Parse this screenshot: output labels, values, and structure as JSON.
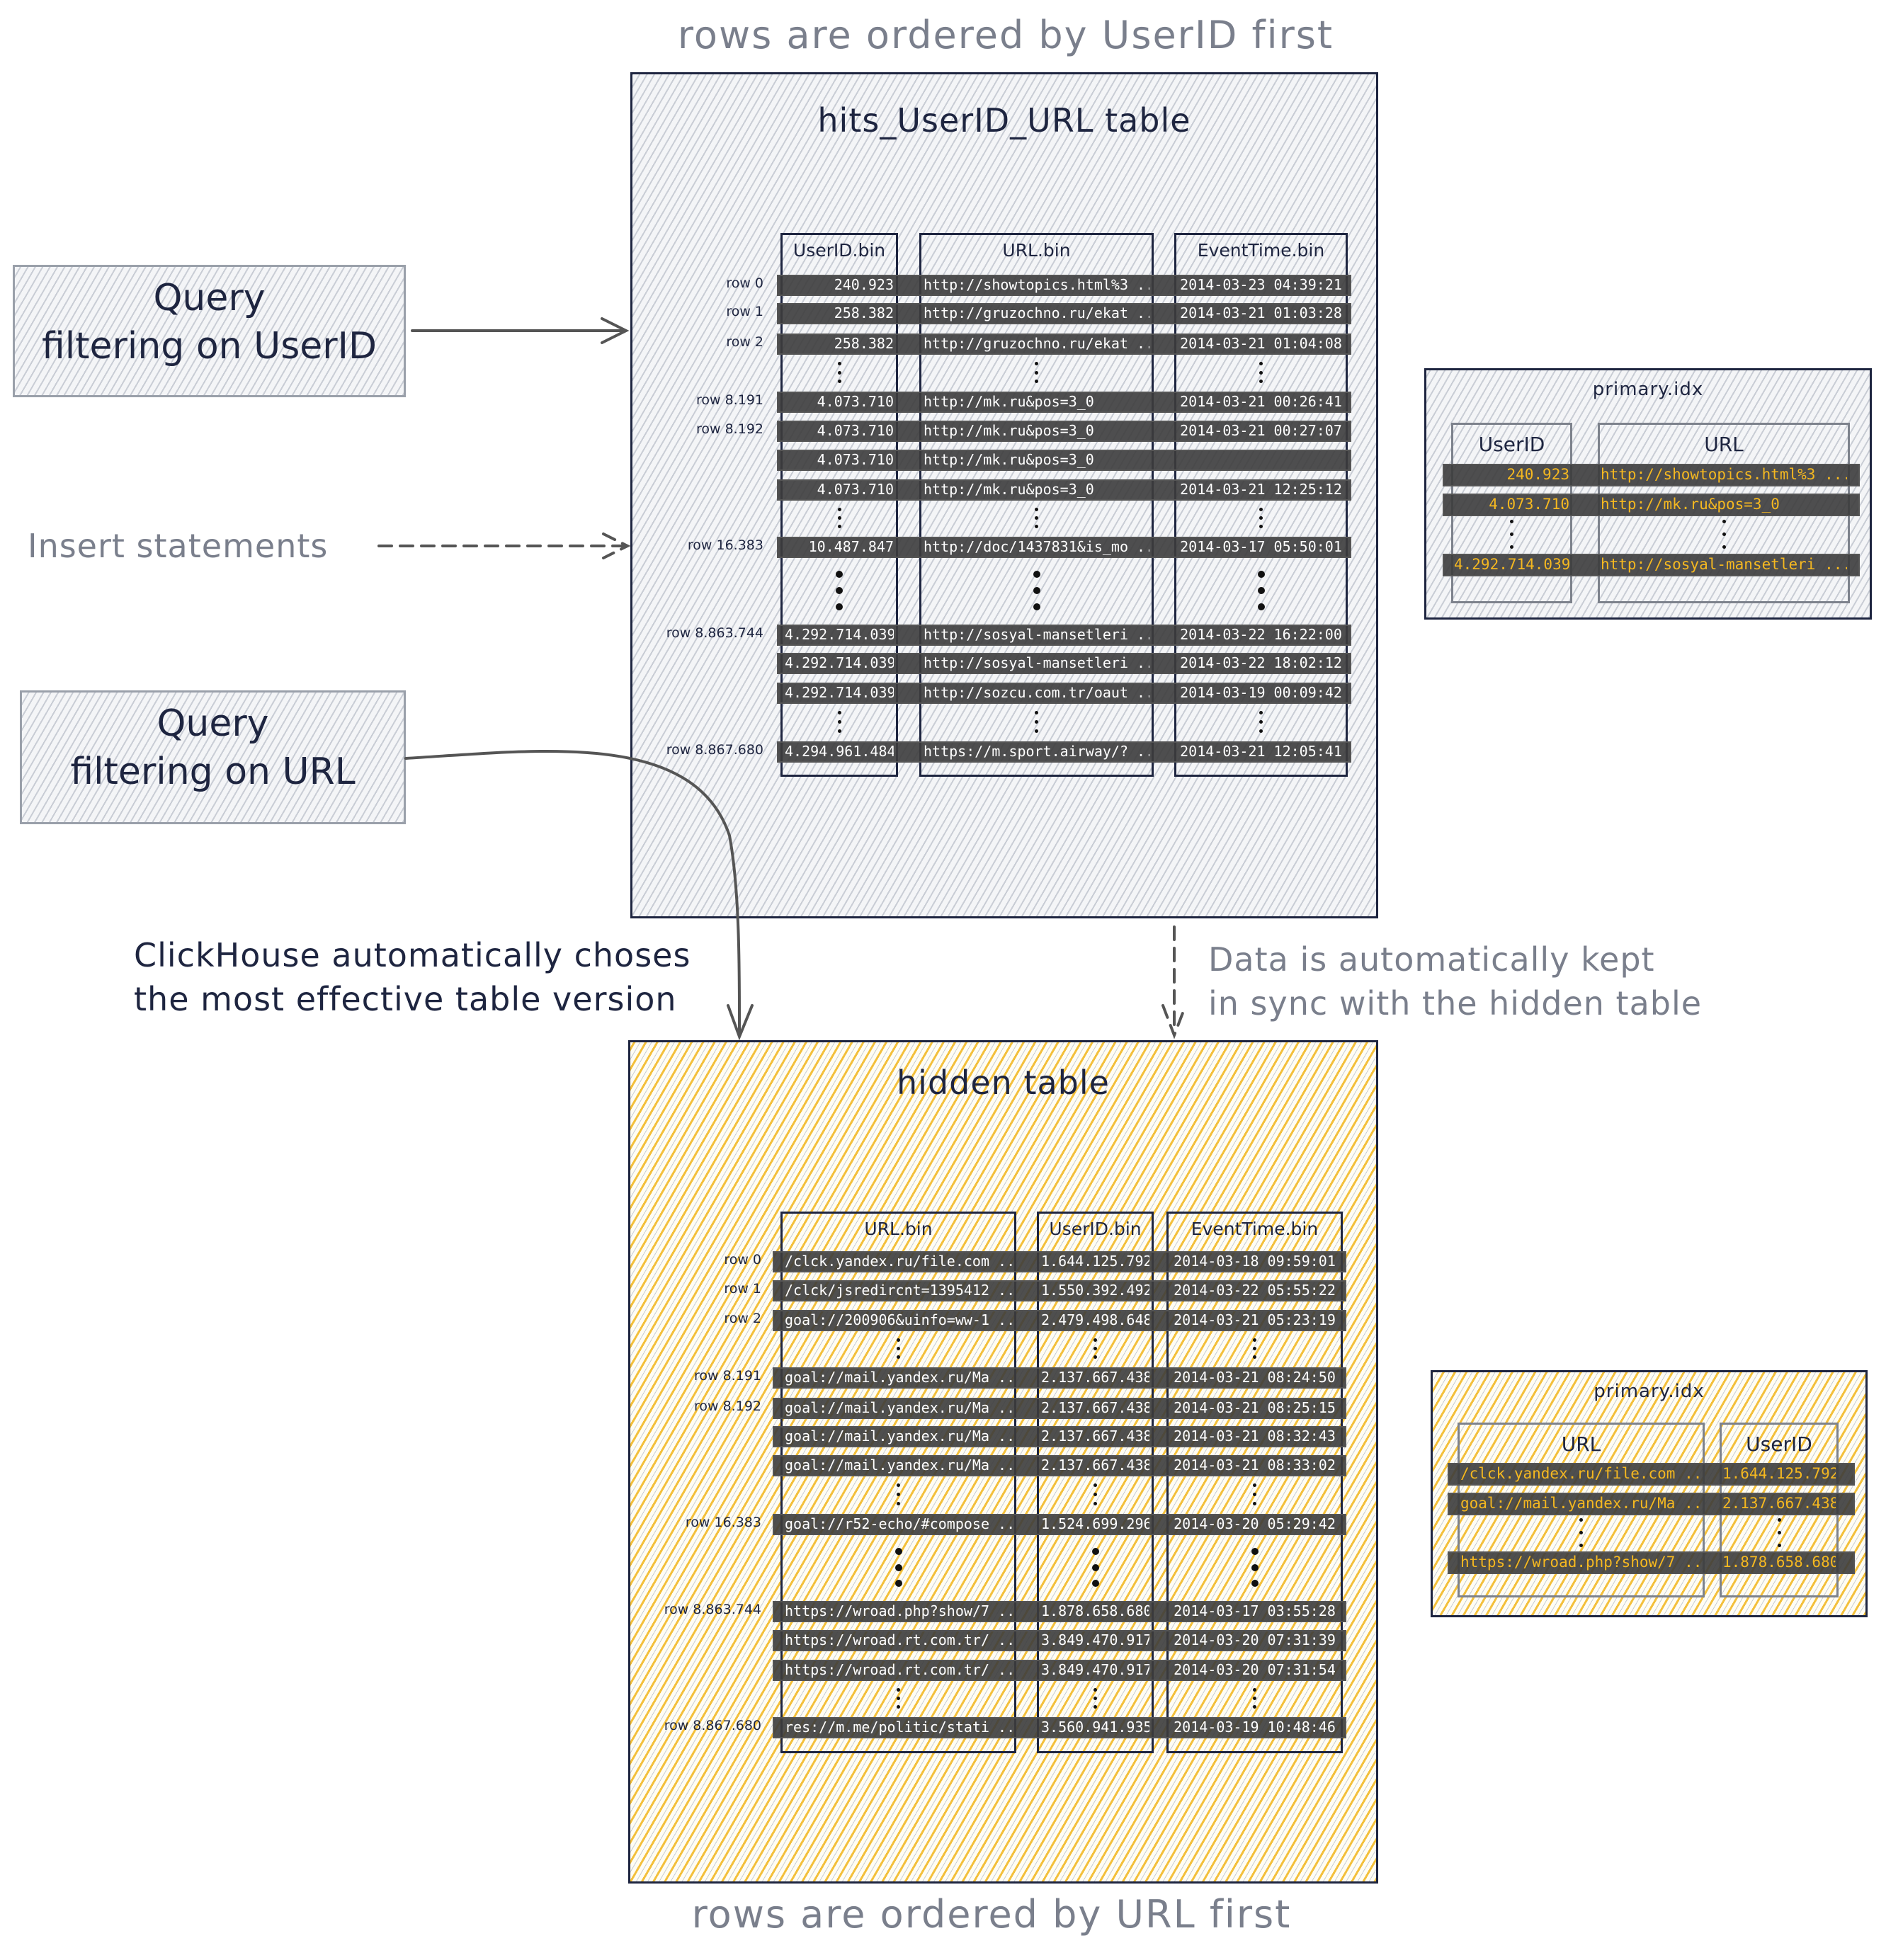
{
  "captions": {
    "top": "rows are ordered by UserID first",
    "bottom": "rows are ordered by URL first"
  },
  "left": {
    "query_userid": [
      "Query",
      "filtering on UserID"
    ],
    "insert": "Insert statements",
    "query_url": [
      "Query",
      "filtering on URL"
    ],
    "clickhouse_note": [
      "ClickHouse automatically choses",
      "the most effective table version"
    ],
    "sync_note": [
      "Data is automatically kept",
      "in sync with the hidden table"
    ]
  },
  "main_table": {
    "title": "hits_UserID_URL table",
    "columns": [
      "UserID.bin",
      "URL.bin",
      "EventTime.bin"
    ],
    "rows": [
      {
        "label": "row 0",
        "cells": [
          "240.923",
          "http://showtopics.html%3 ...",
          "2014-03-23 04:39:21"
        ]
      },
      {
        "label": "row 1",
        "cells": [
          "258.382",
          "http://gruzochno.ru/ekat ...",
          "2014-03-21 01:03:28"
        ]
      },
      {
        "label": "row 2",
        "cells": [
          "258.382",
          "http://gruzochno.ru/ekat ...",
          "2014-03-21 01:04:08"
        ]
      },
      {
        "label": "row 8.191",
        "cells": [
          "4.073.710",
          "http://mk.ru&pos=3_0",
          "2014-03-21 00:26:41"
        ]
      },
      {
        "label": "row 8.192",
        "cells": [
          "4.073.710",
          "http://mk.ru&pos=3_0",
          "2014-03-21 00:27:07"
        ]
      },
      {
        "label": "",
        "cells": [
          "4.073.710",
          "http://mk.ru&pos=3_0",
          ""
        ]
      },
      {
        "label": "",
        "cells": [
          "4.073.710",
          "http://mk.ru&pos=3_0",
          "2014-03-21 12:25:12"
        ]
      },
      {
        "label": "row 16.383",
        "cells": [
          "10.487.847",
          "http://doc/1437831&is_mo ...",
          "2014-03-17 05:50:01"
        ]
      },
      {
        "label": "row 8.863.744",
        "cells": [
          "4.292.714.039",
          "http://sosyal-mansetleri ...",
          "2014-03-22 16:22:00"
        ]
      },
      {
        "label": "",
        "cells": [
          "4.292.714.039",
          "http://sosyal-mansetleri ...",
          "2014-03-22 18:02:12"
        ]
      },
      {
        "label": "",
        "cells": [
          "4.292.714.039",
          "http://sozcu.com.tr/oaut ...",
          "2014-03-19 00:09:42"
        ]
      },
      {
        "label": "row 8.867.680",
        "cells": [
          "4.294.961.484",
          "https://m.sport.airway/? ...",
          "2014-03-21 12:05:41"
        ]
      }
    ]
  },
  "hidden_table": {
    "title": "hidden table",
    "columns": [
      "URL.bin",
      "UserID.bin",
      "EventTime.bin"
    ],
    "rows": [
      {
        "label": "row 0",
        "cells": [
          "/clck.yandex.ru/file.com ...",
          "1.644.125.792",
          "2014-03-18 09:59:01"
        ]
      },
      {
        "label": "row 1",
        "cells": [
          "/clck/jsredircnt=1395412 ...",
          "1.550.392.492",
          "2014-03-22 05:55:22"
        ]
      },
      {
        "label": "row 2",
        "cells": [
          "goal://200906&uinfo=ww-1 ...",
          "2.479.498.648",
          "2014-03-21 05:23:19"
        ]
      },
      {
        "label": "row 8.191",
        "cells": [
          "goal://mail.yandex.ru/Ma ...",
          "2.137.667.438",
          "2014-03-21 08:24:50"
        ]
      },
      {
        "label": "row 8.192",
        "cells": [
          "goal://mail.yandex.ru/Ma ...",
          "2.137.667.438",
          "2014-03-21 08:25:15"
        ]
      },
      {
        "label": "",
        "cells": [
          "goal://mail.yandex.ru/Ma ...",
          "2.137.667.438",
          "2014-03-21 08:32:43"
        ]
      },
      {
        "label": "",
        "cells": [
          "goal://mail.yandex.ru/Ma ...",
          "2.137.667.438",
          "2014-03-21 08:33:02"
        ]
      },
      {
        "label": "row 16.383",
        "cells": [
          "goal://r52-echo/#compose ...",
          "1.524.699.296",
          "2014-03-20 05:29:42"
        ]
      },
      {
        "label": "row 8.863.744",
        "cells": [
          "https://wroad.php?show/7 ...",
          "1.878.658.680",
          "2014-03-17 03:55:28"
        ]
      },
      {
        "label": "",
        "cells": [
          "https://wroad.rt.com.tr/ ...",
          "3.849.470.917",
          "2014-03-20 07:31:39"
        ]
      },
      {
        "label": "",
        "cells": [
          "https://wroad.rt.com.tr/ ...",
          "3.849.470.917",
          "2014-03-20 07:31:54"
        ]
      },
      {
        "label": "row 8.867.680",
        "cells": [
          "res://m.me/politic/stati ...",
          "3.560.941.935",
          "2014-03-19 10:48:46"
        ]
      }
    ]
  },
  "primary_idx_main": {
    "title": "primary.idx",
    "columns": [
      "UserID",
      "URL"
    ],
    "rows": [
      [
        "240.923",
        "http://showtopics.html%3 ..."
      ],
      [
        "4.073.710",
        "http://mk.ru&pos=3_0"
      ],
      [
        "4.292.714.039",
        "http://sosyal-mansetleri ..."
      ]
    ]
  },
  "primary_idx_hidden": {
    "title": "primary.idx",
    "columns": [
      "URL",
      "UserID"
    ],
    "rows": [
      [
        "/clck.yandex.ru/file.com ...",
        "1.644.125.792"
      ],
      [
        "goal://mail.yandex.ru/Ma ...",
        "2.137.667.438"
      ],
      [
        "https://wroad.php?show/7 ...",
        "1.878.658.680"
      ]
    ]
  },
  "colors": {
    "ink": "#1e2540",
    "muted_text": "#7a7f8c",
    "hatch_gray": "#c9cdd5",
    "hatch_yellow": "#f3c03c",
    "row_bar": "#3c3c3c",
    "index_text": "#f5b820"
  }
}
